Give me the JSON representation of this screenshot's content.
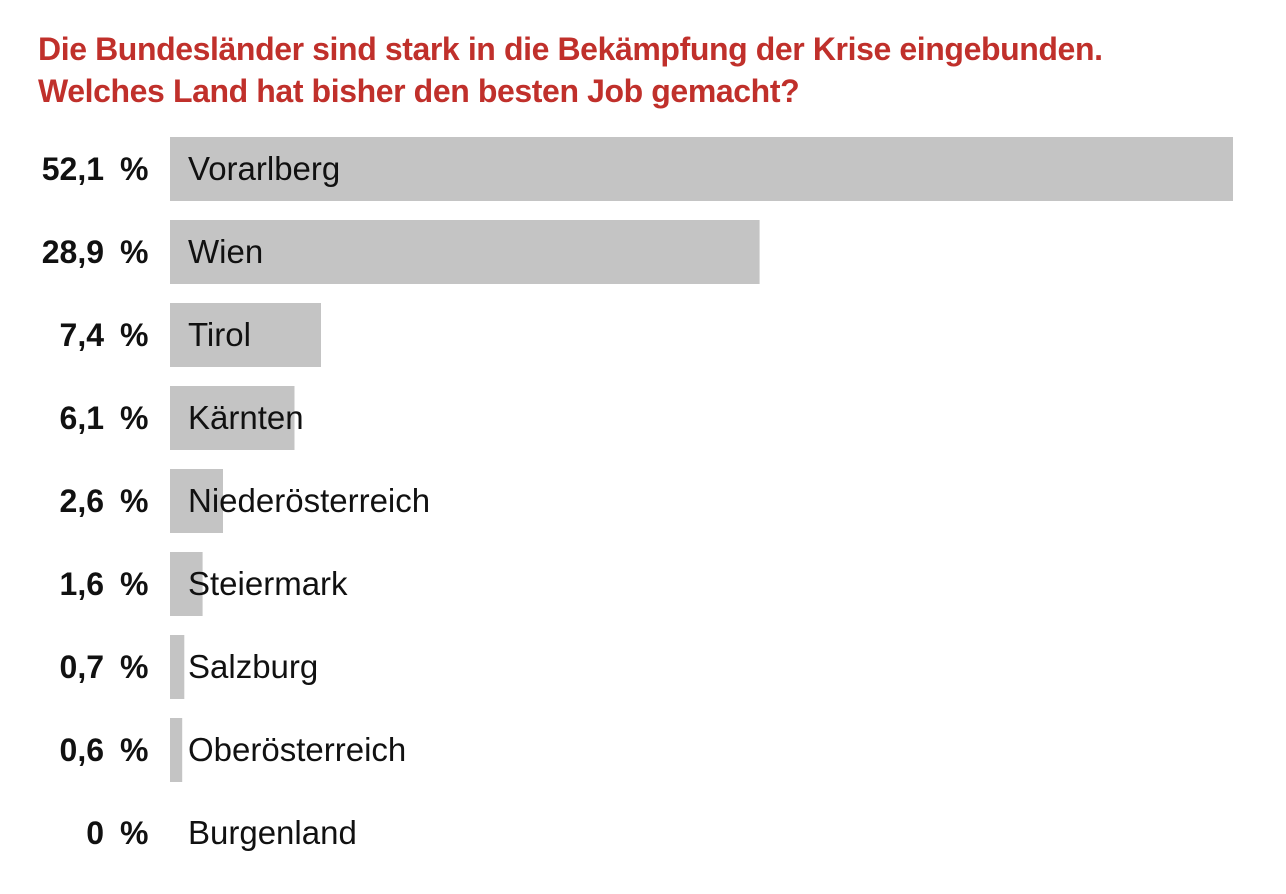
{
  "title_lines": [
    "Die Bundesländer sind stark in die Bekämpfung der Krise eingebunden.",
    "Welches Land hat bisher den besten Job gemacht?"
  ],
  "colors": {
    "title": "#c0302b",
    "bar": "#c4c4c4",
    "text": "#111111"
  },
  "chart_data": {
    "type": "bar",
    "orientation": "horizontal",
    "title": "Die Bundesländer sind stark in die Bekämpfung der Krise eingebunden. Welches Land hat bisher den besten Job gemacht?",
    "categories": [
      "Vorarlberg",
      "Wien",
      "Tirol",
      "Kärnten",
      "Niederösterreich",
      "Steiermark",
      "Salzburg",
      "Oberösterreich",
      "Burgenland"
    ],
    "values": [
      52.1,
      28.9,
      7.4,
      6.1,
      2.6,
      1.6,
      0.7,
      0.6,
      0
    ],
    "value_labels": [
      "52,1",
      "28,9",
      "7,4",
      "6,1",
      "2,6",
      "1,6",
      "0,7",
      "0,6",
      "0"
    ],
    "unit": "%",
    "xlim": [
      0,
      52.1
    ],
    "grid": false,
    "legend": "none"
  }
}
